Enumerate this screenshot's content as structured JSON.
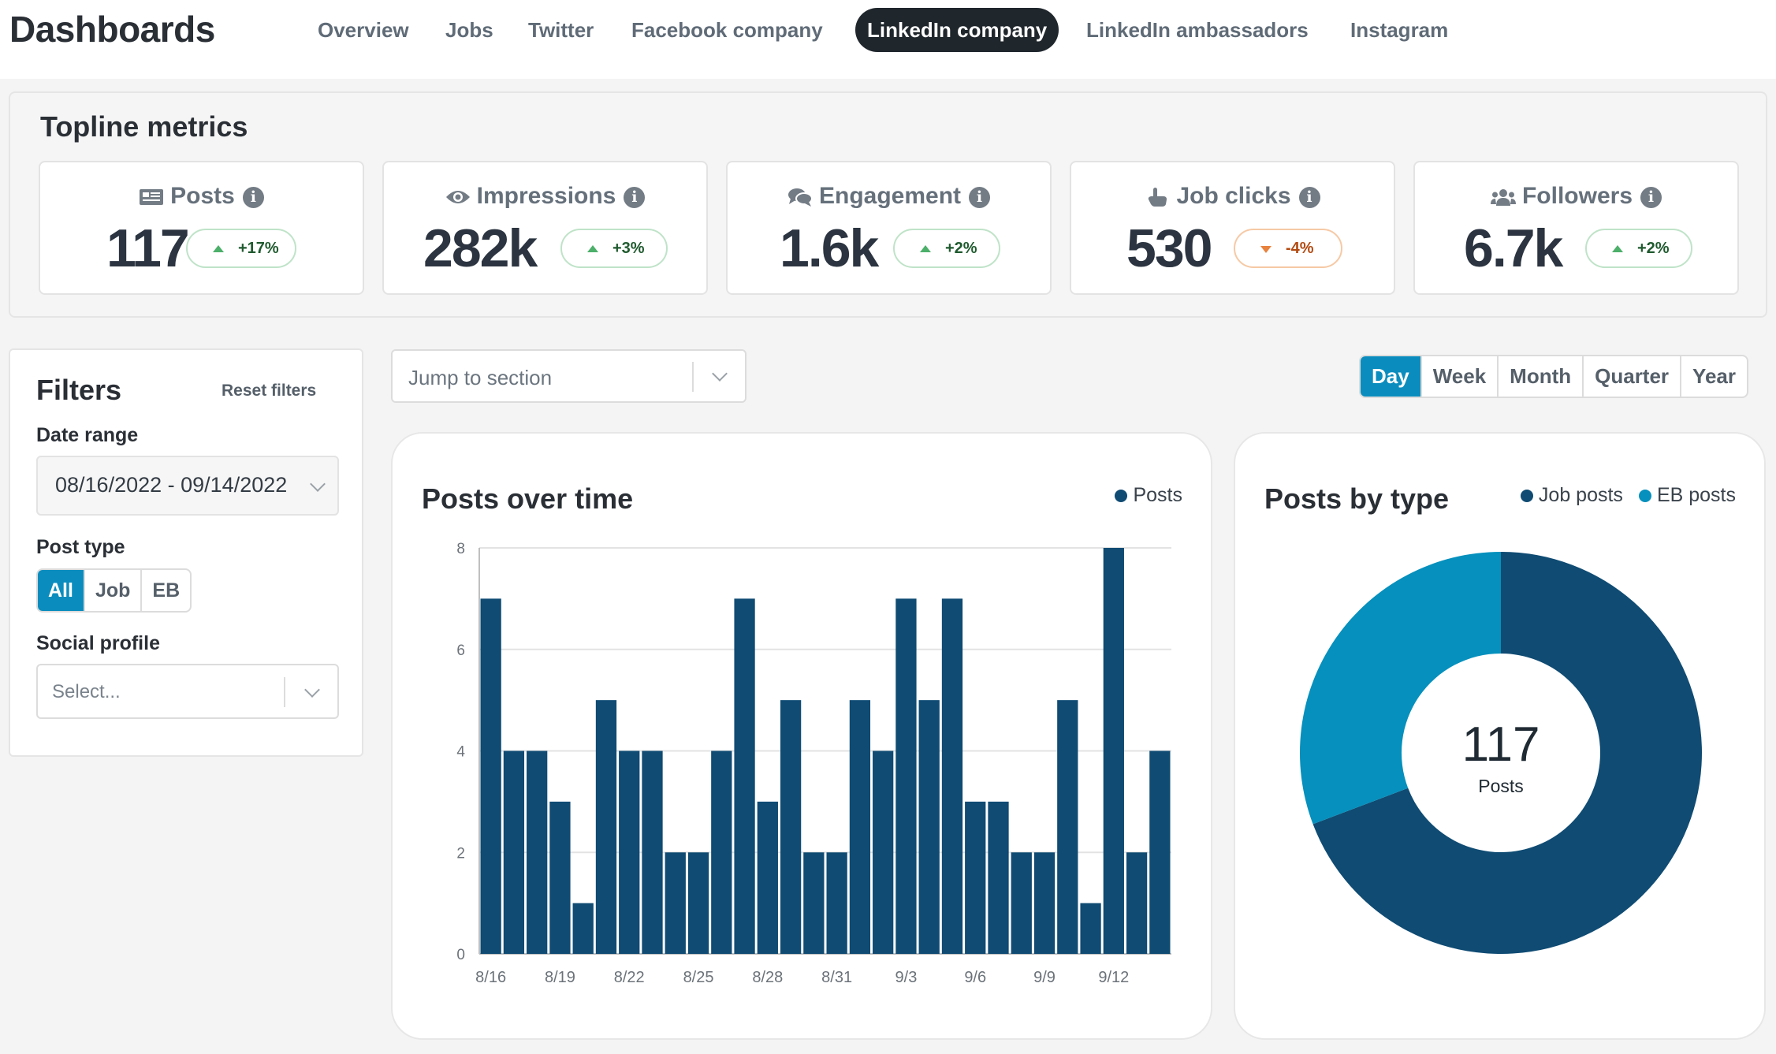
{
  "app": {
    "title": "Dashboards"
  },
  "nav": {
    "tabs": [
      {
        "label": "Overview",
        "active": false
      },
      {
        "label": "Jobs",
        "active": false
      },
      {
        "label": "Twitter",
        "active": false
      },
      {
        "label": "Facebook company",
        "active": false
      },
      {
        "label": "LinkedIn company",
        "active": true
      },
      {
        "label": "LinkedIn ambassadors",
        "active": false
      },
      {
        "label": "Instagram",
        "active": false
      }
    ]
  },
  "topline": {
    "title": "Topline metrics",
    "metrics": [
      {
        "label": "Posts",
        "icon": "newspaper-icon",
        "value": "117",
        "change": "+17%",
        "direction": "up"
      },
      {
        "label": "Impressions",
        "icon": "eye-icon",
        "value": "282k",
        "change": "+3%",
        "direction": "up"
      },
      {
        "label": "Engagement",
        "icon": "comments-icon",
        "value": "1.6k",
        "change": "+2%",
        "direction": "up"
      },
      {
        "label": "Job clicks",
        "icon": "pointer-hand-icon",
        "value": "530",
        "change": "-4%",
        "direction": "down"
      },
      {
        "label": "Followers",
        "icon": "users-icon",
        "value": "6.7k",
        "change": "+2%",
        "direction": "up"
      }
    ]
  },
  "filters": {
    "title": "Filters",
    "reset_label": "Reset filters",
    "date_range_label": "Date range",
    "date_range_value": "08/16/2022 - 09/14/2022",
    "post_type_label": "Post type",
    "post_type_options": [
      "All",
      "Job",
      "EB"
    ],
    "post_type_selected": "All",
    "social_profile_label": "Social profile",
    "social_profile_placeholder": "Select..."
  },
  "jump": {
    "placeholder": "Jump to section"
  },
  "period": {
    "options": [
      "Day",
      "Week",
      "Month",
      "Quarter",
      "Year"
    ],
    "selected": "Day"
  },
  "colors": {
    "accent": "#0a8dbe",
    "navy": "#0f4b73",
    "teal": "#0590bd",
    "positive": "#4caf6a",
    "negative": "#e8823f"
  },
  "chart_data": [
    {
      "type": "bar",
      "title": "Posts over time",
      "legend_position": "top-right",
      "categories": [
        "8/16",
        "8/17",
        "8/18",
        "8/19",
        "8/20",
        "8/21",
        "8/22",
        "8/23",
        "8/24",
        "8/25",
        "8/26",
        "8/27",
        "8/28",
        "8/29",
        "8/30",
        "8/31",
        "9/1",
        "9/2",
        "9/3",
        "9/4",
        "9/5",
        "9/6",
        "9/7",
        "9/8",
        "9/9",
        "9/10",
        "9/11",
        "9/12",
        "9/13",
        "9/14"
      ],
      "tick_labels": [
        "8/16",
        "8/19",
        "8/22",
        "8/25",
        "8/28",
        "8/31",
        "9/3",
        "9/6",
        "9/9",
        "9/12"
      ],
      "series": [
        {
          "name": "Posts",
          "color": "#0f4b73",
          "values": [
            7,
            4,
            4,
            3,
            1,
            5,
            4,
            4,
            2,
            2,
            4,
            7,
            3,
            5,
            2,
            2,
            5,
            4,
            7,
            5,
            7,
            3,
            3,
            2,
            2,
            5,
            1,
            8,
            2,
            4
          ]
        }
      ],
      "yticks": [
        0,
        2,
        4,
        6,
        8
      ],
      "ylim": [
        0,
        8
      ],
      "grid": true
    },
    {
      "type": "pie",
      "title": "Posts by type",
      "legend_position": "top-right",
      "center_value": "117",
      "center_label": "Posts",
      "series": [
        {
          "name": "Job posts",
          "color": "#0f4b73",
          "value": 81
        },
        {
          "name": "EB posts",
          "color": "#0590bd",
          "value": 36
        }
      ]
    }
  ]
}
